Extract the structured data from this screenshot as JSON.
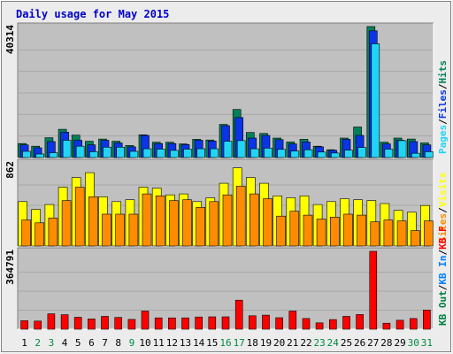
{
  "colors": {
    "background": "#ececec",
    "plot_bg": "#c0c0c0",
    "title": "#0000c8",
    "weekday_label": "#000000",
    "weekend_label": "#008a3e",
    "hits": "#00805a",
    "files": "#0a34e6",
    "pages": "#22d4f4",
    "visits": "#ffff00",
    "sites": "#ff8c00",
    "kbin": "#0080ff",
    "kbout": "#008040",
    "kbf": "#ff0000"
  },
  "chart_data": [
    {
      "type": "bar",
      "title": "Daily usage for May 2015",
      "categories": [
        "1",
        "2",
        "3",
        "4",
        "5",
        "6",
        "7",
        "8",
        "9",
        "10",
        "11",
        "12",
        "13",
        "14",
        "15",
        "16",
        "17",
        "18",
        "19",
        "20",
        "21",
        "22",
        "23",
        "24",
        "25",
        "26",
        "27",
        "28",
        "29",
        "30",
        "31"
      ],
      "weekend_days": [
        "2",
        "3",
        "9",
        "16",
        "17",
        "23",
        "24",
        "30",
        "31"
      ],
      "y_max_label": "40314",
      "legend": [
        {
          "text": "Hits",
          "color_key": "hits"
        },
        {
          "text": "/",
          "color_key": "weekday_label"
        },
        {
          "text": "Files",
          "color_key": "files"
        },
        {
          "text": "/",
          "color_key": "weekday_label"
        },
        {
          "text": "Pages",
          "color_key": "pages"
        }
      ],
      "ylim": [
        0,
        40314
      ],
      "series": [
        {
          "name": "Hits",
          "color_key": "hits",
          "values": [
            4300,
            3500,
            6100,
            8700,
            6900,
            5000,
            5700,
            5000,
            3700,
            7000,
            4700,
            4700,
            4200,
            5600,
            5400,
            10200,
            14800,
            7700,
            7400,
            6000,
            4800,
            5600,
            3500,
            2400,
            6000,
            9400,
            40314,
            4700,
            6000,
            5700,
            4500
          ]
        },
        {
          "name": "Files",
          "color_key": "files",
          "values": [
            3900,
            3000,
            4900,
            7800,
            5300,
            3900,
            5300,
            4500,
            3300,
            6800,
            4300,
            4300,
            4000,
            5300,
            5100,
            9800,
            12300,
            6000,
            6800,
            5500,
            4200,
            4800,
            3300,
            2200,
            5600,
            6800,
            39000,
            4200,
            5300,
            4900,
            3900
          ]
        },
        {
          "name": "Pages",
          "color_key": "pages",
          "values": [
            1900,
            1100,
            1500,
            5300,
            3500,
            1800,
            3200,
            3200,
            1900,
            2700,
            2600,
            2200,
            2600,
            2700,
            2700,
            5000,
            5200,
            2700,
            2900,
            2500,
            2000,
            2400,
            1700,
            1400,
            2300,
            3100,
            35000,
            2600,
            5200,
            1300,
            1800
          ]
        }
      ]
    },
    {
      "type": "bar",
      "categories": [
        "1",
        "2",
        "3",
        "4",
        "5",
        "6",
        "7",
        "8",
        "9",
        "10",
        "11",
        "12",
        "13",
        "14",
        "15",
        "16",
        "17",
        "18",
        "19",
        "20",
        "21",
        "22",
        "23",
        "24",
        "25",
        "26",
        "27",
        "28",
        "29",
        "30",
        "31"
      ],
      "y_max_label": "862",
      "legend": [
        {
          "text": "Visits",
          "color_key": "visits"
        },
        {
          "text": "/",
          "color_key": "weekday_label"
        },
        {
          "text": "Sites",
          "color_key": "sites"
        }
      ],
      "ylim": [
        0,
        862
      ],
      "series": [
        {
          "name": "Visits",
          "color_key": "visits",
          "values": [
            460,
            380,
            430,
            610,
            710,
            760,
            510,
            460,
            480,
            610,
            600,
            530,
            540,
            460,
            500,
            650,
            810,
            710,
            650,
            520,
            500,
            520,
            430,
            460,
            490,
            480,
            470,
            440,
            370,
            350,
            420
          ]
        },
        {
          "name": "Sites",
          "color_key": "sites",
          "values": [
            270,
            240,
            290,
            470,
            610,
            510,
            330,
            330,
            330,
            540,
            520,
            470,
            480,
            400,
            460,
            530,
            620,
            540,
            490,
            310,
            360,
            320,
            280,
            300,
            330,
            320,
            250,
            270,
            260,
            160,
            260
          ]
        }
      ]
    },
    {
      "type": "bar",
      "categories": [
        "1",
        "2",
        "3",
        "4",
        "5",
        "6",
        "7",
        "8",
        "9",
        "10",
        "11",
        "12",
        "13",
        "14",
        "15",
        "16",
        "17",
        "18",
        "19",
        "20",
        "21",
        "22",
        "23",
        "24",
        "25",
        "26",
        "27",
        "28",
        "29",
        "30",
        "31"
      ],
      "y_max_label": "364791",
      "legend": [
        {
          "text": "KB F",
          "color_key": "kbf"
        },
        {
          "text": "/",
          "color_key": "weekday_label"
        },
        {
          "text": "KB In",
          "color_key": "kbin"
        },
        {
          "text": "/",
          "color_key": "weekday_label"
        },
        {
          "text": "KB Out",
          "color_key": "kbout"
        }
      ],
      "ylim": [
        0,
        364791
      ],
      "series": [
        {
          "name": "KB F",
          "color_key": "kbf",
          "values": [
            40000,
            38000,
            72000,
            68000,
            56000,
            48000,
            60000,
            55000,
            46000,
            85000,
            53000,
            53000,
            53000,
            57000,
            58000,
            58000,
            136000,
            63000,
            66000,
            54000,
            85000,
            50000,
            30000,
            45000,
            60000,
            69000,
            364791,
            28000,
            42000,
            50000,
            90000
          ]
        }
      ]
    }
  ]
}
